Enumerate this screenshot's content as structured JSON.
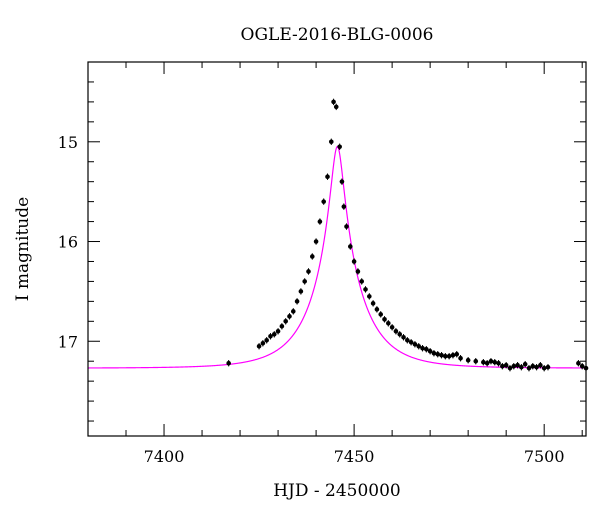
{
  "chart_data": {
    "type": "scatter",
    "title": "OGLE-2016-BLG-0006",
    "xlabel": "HJD - 2450000",
    "ylabel": "I magnitude",
    "xlim": [
      7380,
      7511
    ],
    "ylim": [
      17.95,
      14.2
    ],
    "y_inverted": true,
    "grid": false,
    "x_ticks": [
      7400,
      7450,
      7500
    ],
    "y_ticks": [
      15,
      16,
      17
    ],
    "x_tick_labels": [
      "7400",
      "7450",
      "7500"
    ],
    "y_tick_labels": [
      "15",
      "16",
      "17"
    ],
    "colors": {
      "model": "#ff00ff",
      "points": "#000000"
    },
    "model": {
      "t0": 7445.6,
      "tE": 12,
      "u0": 0.13,
      "baseline": 17.27,
      "fs": 1.0
    },
    "series": [
      {
        "kind": "observations",
        "x": [
          7417,
          7425,
          7426,
          7427,
          7428,
          7429,
          7430,
          7431,
          7432,
          7433,
          7434,
          7435,
          7436,
          7437,
          7438,
          7439,
          7440,
          7441,
          7442,
          7443,
          7444,
          7444.6,
          7445.3,
          7446.2,
          7446.8,
          7447.3,
          7448,
          7449,
          7450,
          7451,
          7452,
          7453,
          7454,
          7455,
          7456,
          7457,
          7458,
          7459,
          7460,
          7461,
          7462,
          7463,
          7464,
          7465,
          7466,
          7467,
          7468,
          7469,
          7470,
          7471,
          7472,
          7473,
          7474,
          7475,
          7476,
          7477,
          7478,
          7480,
          7482,
          7484,
          7485,
          7486,
          7487,
          7488,
          7489,
          7490,
          7491,
          7492,
          7493,
          7494,
          7495,
          7496,
          7497,
          7498,
          7499,
          7500,
          7501,
          7509,
          7510,
          7511
        ],
        "y": [
          17.22,
          17.05,
          17.02,
          16.99,
          16.95,
          16.93,
          16.9,
          16.85,
          16.8,
          16.75,
          16.7,
          16.6,
          16.5,
          16.4,
          16.3,
          16.15,
          16.0,
          15.8,
          15.6,
          15.35,
          15.0,
          14.6,
          14.65,
          15.05,
          15.4,
          15.65,
          15.85,
          16.05,
          16.2,
          16.3,
          16.4,
          16.48,
          16.55,
          16.62,
          16.68,
          16.73,
          16.78,
          16.82,
          16.86,
          16.9,
          16.93,
          16.96,
          16.99,
          17.01,
          17.03,
          17.05,
          17.07,
          17.08,
          17.1,
          17.12,
          17.13,
          17.14,
          17.15,
          17.15,
          17.14,
          17.13,
          17.17,
          17.19,
          17.2,
          17.21,
          17.22,
          17.2,
          17.21,
          17.22,
          17.25,
          17.24,
          17.27,
          17.25,
          17.24,
          17.26,
          17.23,
          17.27,
          17.25,
          17.26,
          17.24,
          17.27,
          17.26,
          17.22,
          17.25,
          17.27
        ]
      }
    ]
  }
}
